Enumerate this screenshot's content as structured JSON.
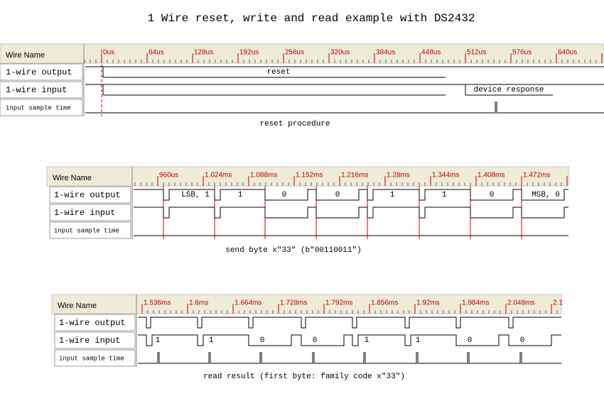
{
  "title": "1 Wire reset, write and read example with DS2432",
  "panels": [
    {
      "header": "Wire Name",
      "time_labels": [
        "0us",
        "64us",
        "128us",
        "192us",
        "256us",
        "320us",
        "384us",
        "448us",
        "512us",
        "576us",
        "640us"
      ],
      "signals": [
        "1-wire output",
        "1-wire input",
        "input sample time"
      ],
      "output_labels": [
        "reset"
      ],
      "input_labels": [
        "device response"
      ],
      "caption": "reset procedure"
    },
    {
      "header": "Wire Name",
      "time_labels": [
        "960us",
        "1.024ms",
        "1.088ms",
        "1.152ms",
        "1.216ms",
        "1.28ms",
        "1.344ms",
        "1.408ms",
        "1.472ms"
      ],
      "signals": [
        "1-wire output",
        "1-wire input",
        "input sample time"
      ],
      "output_labels": [
        "LSB, 1",
        "1",
        "0",
        "0",
        "1",
        "1",
        "0",
        "MSB, 0"
      ],
      "input_labels": [],
      "caption": "send byte x\"33\" (b\"00110011\")"
    },
    {
      "header": "Wire Name",
      "time_labels": [
        "1.536ms",
        "1.6ms",
        "1.664ms",
        "1.728ms",
        "1.792ms",
        "1.856ms",
        "1.92ms",
        "1.984ms",
        "2.048ms",
        "2.1"
      ],
      "signals": [
        "1-wire output",
        "1-wire input",
        "input sample time"
      ],
      "output_labels": [],
      "input_labels": [
        "1",
        "1",
        "0",
        "0",
        "1",
        "1",
        "0",
        "0"
      ],
      "caption": "read result (first byte: family code x\"33\")"
    }
  ]
}
